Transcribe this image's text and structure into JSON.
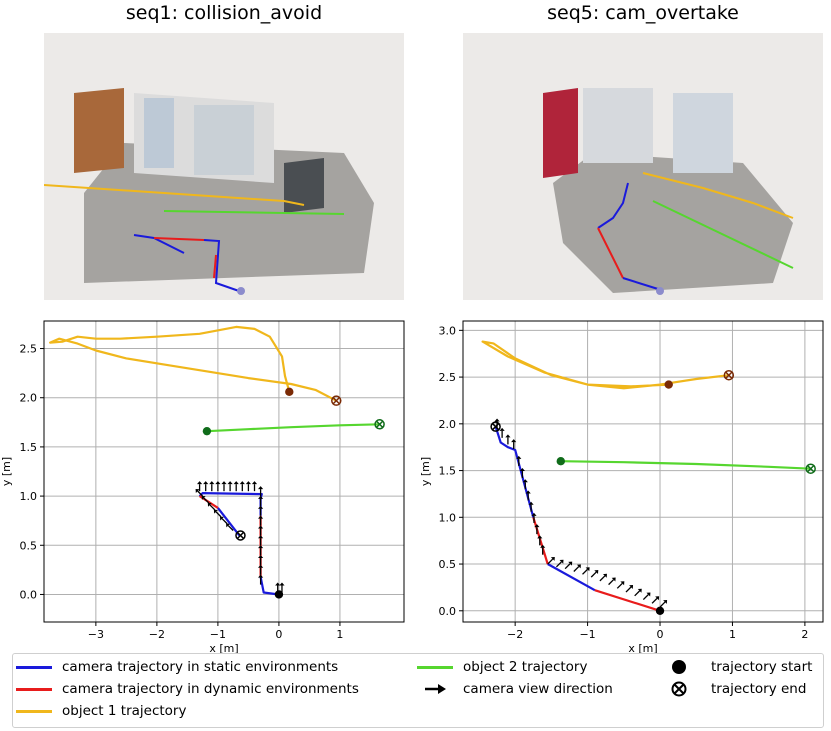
{
  "panels": [
    {
      "title": "seq1: collision_avoid"
    },
    {
      "title": "seq5: cam_overtake"
    }
  ],
  "colors": {
    "camera_static": "#1a1adb",
    "camera_dynamic": "#e81c1c",
    "object1": "#f0b71c",
    "object2": "#56d62f",
    "object1_marker": "#7a2a05",
    "object2_marker": "#106c1a"
  },
  "chart_data": [
    {
      "type": "line",
      "title": "",
      "xlabel": "x [m]",
      "ylabel": "y [m]",
      "xlim": [
        -3.85,
        2.05
      ],
      "ylim": [
        -0.28,
        2.78
      ],
      "xticks": [
        -3,
        -2,
        -1,
        0,
        1
      ],
      "yticks": [
        0.0,
        0.5,
        1.0,
        1.5,
        2.0,
        2.5
      ],
      "grid": true,
      "series": [
        {
          "name": "camera trajectory in static environments",
          "color_key": "camera_static",
          "segments": [
            [
              [
                0.0,
                0.0
              ],
              [
                -0.25,
                0.02
              ],
              [
                -0.3,
                0.18
              ]
            ],
            [
              [
                -0.3,
                0.8
              ],
              [
                -0.3,
                0.98
              ],
              [
                -0.28,
                1.02
              ],
              [
                -1.25,
                1.03
              ],
              [
                -1.3,
                1.0
              ]
            ],
            [
              [
                -1.0,
                0.88
              ],
              [
                -0.65,
                0.6
              ]
            ]
          ]
        },
        {
          "name": "camera trajectory in dynamic environments",
          "color_key": "camera_dynamic",
          "segments": [
            [
              [
                -0.3,
                0.18
              ],
              [
                -0.3,
                0.8
              ]
            ],
            [
              [
                -1.3,
                1.0
              ],
              [
                -1.0,
                0.88
              ]
            ]
          ]
        },
        {
          "name": "object 1 trajectory",
          "color_key": "object1",
          "points": [
            [
              0.17,
              2.06
            ],
            [
              0.1,
              2.22
            ],
            [
              0.05,
              2.42
            ],
            [
              -0.15,
              2.62
            ],
            [
              -0.4,
              2.7
            ],
            [
              -0.7,
              2.72
            ],
            [
              -1.3,
              2.65
            ],
            [
              -2.0,
              2.62
            ],
            [
              -2.6,
              2.6
            ],
            [
              -3.0,
              2.6
            ],
            [
              -3.3,
              2.62
            ],
            [
              -3.55,
              2.57
            ],
            [
              -3.75,
              2.56
            ],
            [
              -3.6,
              2.6
            ],
            [
              -3.3,
              2.55
            ],
            [
              -3.0,
              2.48
            ],
            [
              -2.5,
              2.4
            ],
            [
              -1.8,
              2.33
            ],
            [
              -1.2,
              2.27
            ],
            [
              -0.5,
              2.2
            ],
            [
              0.2,
              2.14
            ],
            [
              0.6,
              2.08
            ],
            [
              0.94,
              1.97
            ]
          ]
        },
        {
          "name": "object 2 trajectory",
          "color_key": "object2",
          "points": [
            [
              -1.18,
              1.66
            ],
            [
              -0.5,
              1.68
            ],
            [
              0.2,
              1.7
            ],
            [
              1.0,
              1.72
            ],
            [
              1.65,
              1.73
            ]
          ]
        }
      ],
      "view_arrows": [
        [
          -0.02,
          0.02,
          0,
          1
        ],
        [
          0.05,
          0.02,
          0,
          1
        ],
        [
          -0.3,
          0.1,
          0,
          1
        ],
        [
          -0.3,
          0.2,
          0,
          1
        ],
        [
          -0.3,
          0.3,
          0,
          1
        ],
        [
          -0.3,
          0.4,
          0,
          1
        ],
        [
          -0.3,
          0.5,
          0,
          1
        ],
        [
          -0.3,
          0.6,
          0,
          1
        ],
        [
          -0.3,
          0.7,
          0,
          1
        ],
        [
          -0.3,
          0.8,
          0,
          1
        ],
        [
          -0.3,
          0.9,
          0,
          1
        ],
        [
          -0.3,
          1.0,
          0,
          1
        ],
        [
          -1.3,
          1.05,
          0,
          1
        ],
        [
          -1.2,
          1.05,
          0,
          1
        ],
        [
          -1.1,
          1.05,
          0,
          1
        ],
        [
          -1.0,
          1.05,
          0,
          1
        ],
        [
          -0.9,
          1.05,
          0,
          1
        ],
        [
          -0.8,
          1.05,
          0,
          1
        ],
        [
          -0.7,
          1.05,
          0,
          1
        ],
        [
          -0.6,
          1.05,
          0,
          1
        ],
        [
          -0.5,
          1.05,
          0,
          1
        ],
        [
          -0.4,
          1.05,
          0,
          1
        ],
        [
          -1.25,
          1.0,
          -1,
          1
        ],
        [
          -1.15,
          0.93,
          -1,
          1
        ],
        [
          -1.05,
          0.86,
          -1,
          1
        ],
        [
          -0.95,
          0.79,
          -1,
          1
        ],
        [
          -0.85,
          0.72,
          -1,
          1
        ],
        [
          -0.75,
          0.65,
          -1,
          1
        ]
      ],
      "markers": [
        {
          "kind": "start",
          "x": 0.0,
          "y": 0.0,
          "color_key": "black"
        },
        {
          "kind": "end",
          "x": -0.63,
          "y": 0.6,
          "color_key": "black"
        },
        {
          "kind": "start",
          "x": 0.17,
          "y": 2.06,
          "color_key": "object1_marker"
        },
        {
          "kind": "end",
          "x": 0.94,
          "y": 1.97,
          "color_key": "object1_marker"
        },
        {
          "kind": "start",
          "x": -1.18,
          "y": 1.66,
          "color_key": "object2_marker"
        },
        {
          "kind": "end",
          "x": 1.65,
          "y": 1.73,
          "color_key": "object2_marker"
        }
      ]
    },
    {
      "type": "line",
      "title": "",
      "xlabel": "x [m]",
      "ylabel": "y [m]",
      "xlim": [
        -2.72,
        2.25
      ],
      "ylim": [
        -0.12,
        3.1
      ],
      "xticks": [
        -2,
        -1,
        0,
        1,
        2
      ],
      "yticks": [
        0.0,
        0.5,
        1.0,
        1.5,
        2.0,
        2.5,
        3.0
      ],
      "grid": true,
      "series": [
        {
          "name": "camera trajectory in static environments",
          "color_key": "camera_static",
          "segments": [
            [
              [
                -2.27,
                1.97
              ],
              [
                -2.2,
                1.8
              ],
              [
                -2.1,
                1.75
              ],
              [
                -2.0,
                1.72
              ],
              [
                -1.75,
                1.0
              ]
            ],
            [
              [
                -1.55,
                0.5
              ],
              [
                -0.9,
                0.22
              ]
            ]
          ]
        },
        {
          "name": "camera trajectory in dynamic environments",
          "color_key": "camera_dynamic",
          "segments": [
            [
              [
                -1.75,
                1.0
              ],
              [
                -1.55,
                0.5
              ]
            ],
            [
              [
                -0.9,
                0.22
              ],
              [
                0.0,
                0.0
              ]
            ]
          ]
        },
        {
          "name": "object 1 trajectory",
          "color_key": "object1",
          "points": [
            [
              0.12,
              2.42
            ],
            [
              -0.4,
              2.4
            ],
            [
              -1.0,
              2.42
            ],
            [
              -1.6,
              2.55
            ],
            [
              -2.1,
              2.72
            ],
            [
              -2.45,
              2.88
            ],
            [
              -2.3,
              2.86
            ],
            [
              -2.0,
              2.7
            ],
            [
              -1.5,
              2.52
            ],
            [
              -1.0,
              2.42
            ],
            [
              -0.5,
              2.38
            ],
            [
              0.0,
              2.42
            ],
            [
              0.5,
              2.48
            ],
            [
              0.95,
              2.52
            ]
          ]
        },
        {
          "name": "object 2 trajectory",
          "color_key": "object2",
          "points": [
            [
              -1.37,
              1.6
            ],
            [
              -0.5,
              1.59
            ],
            [
              0.5,
              1.57
            ],
            [
              1.5,
              1.54
            ],
            [
              2.08,
              1.52
            ]
          ]
        }
      ],
      "view_arrows": [
        [
          -2.25,
          1.95,
          0,
          1
        ],
        [
          -2.18,
          1.85,
          0,
          1
        ],
        [
          -2.1,
          1.78,
          0,
          1
        ],
        [
          -2.02,
          1.73,
          0,
          1
        ],
        [
          -1.95,
          1.55,
          0,
          1
        ],
        [
          -1.9,
          1.42,
          0,
          1
        ],
        [
          -1.86,
          1.3,
          0,
          1
        ],
        [
          -1.82,
          1.18,
          0,
          1
        ],
        [
          -1.78,
          1.06,
          0,
          1
        ],
        [
          -1.74,
          0.94,
          0,
          1
        ],
        [
          -1.7,
          0.82,
          0,
          1
        ],
        [
          -1.66,
          0.7,
          0,
          1
        ],
        [
          -1.62,
          0.6,
          0,
          1
        ],
        [
          -1.55,
          0.5,
          1,
          1
        ],
        [
          -1.43,
          0.47,
          1,
          1
        ],
        [
          -1.31,
          0.45,
          1,
          1
        ],
        [
          -1.19,
          0.42,
          1,
          1
        ],
        [
          -1.07,
          0.39,
          1,
          1
        ],
        [
          -0.95,
          0.36,
          1,
          1
        ],
        [
          -0.83,
          0.32,
          1,
          1
        ],
        [
          -0.71,
          0.28,
          1,
          1
        ],
        [
          -0.59,
          0.24,
          1,
          1
        ],
        [
          -0.47,
          0.2,
          1,
          1
        ],
        [
          -0.35,
          0.16,
          1,
          1
        ],
        [
          -0.23,
          0.12,
          1,
          1
        ],
        [
          -0.11,
          0.08,
          1,
          1
        ],
        [
          0.0,
          0.04,
          1,
          1
        ]
      ],
      "markers": [
        {
          "kind": "start",
          "x": 0.0,
          "y": 0.0,
          "color_key": "black"
        },
        {
          "kind": "end",
          "x": -2.27,
          "y": 1.97,
          "color_key": "black"
        },
        {
          "kind": "start",
          "x": 0.12,
          "y": 2.42,
          "color_key": "object1_marker"
        },
        {
          "kind": "end",
          "x": 0.95,
          "y": 2.52,
          "color_key": "object1_marker"
        },
        {
          "kind": "start",
          "x": -1.37,
          "y": 1.6,
          "color_key": "object2_marker"
        },
        {
          "kind": "end",
          "x": 2.08,
          "y": 1.52,
          "color_key": "object2_marker"
        }
      ]
    }
  ],
  "legend": {
    "items": [
      {
        "label": "camera trajectory in static environments",
        "symbol": "line",
        "color_key": "camera_static"
      },
      {
        "label": "camera trajectory in dynamic environments",
        "symbol": "line",
        "color_key": "camera_dynamic"
      },
      {
        "label": "object 1 trajectory",
        "symbol": "line",
        "color_key": "object1"
      },
      {
        "label": "object 2 trajectory",
        "symbol": "line",
        "color_key": "object2"
      },
      {
        "label": "camera view direction",
        "symbol": "arrow",
        "color_key": "black"
      },
      {
        "label": "trajectory start",
        "symbol": "dot",
        "color_key": "black"
      },
      {
        "label": "trajectory end",
        "symbol": "xcircle",
        "color_key": "black"
      }
    ]
  }
}
